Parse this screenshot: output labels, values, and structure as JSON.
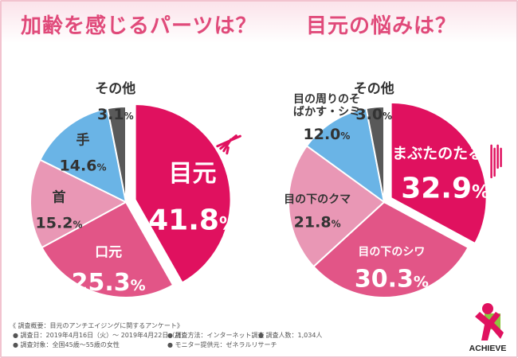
{
  "titles": {
    "left": "加齢を感じるパーツは？",
    "right": "目元の悩みは？"
  },
  "chart_data": [
    {
      "type": "pie",
      "title": "加齢を感じるパーツは？",
      "unit": "%",
      "slices": [
        {
          "label": "目元",
          "value": 41.8,
          "color": "#e0115f",
          "highlight": true
        },
        {
          "label": "口元",
          "value": 25.3,
          "color": "#e25587"
        },
        {
          "label": "首",
          "value": 15.2,
          "color": "#e997b5"
        },
        {
          "label": "手",
          "value": 14.6,
          "color": "#6ab4e6"
        },
        {
          "label": "その他",
          "value": 3.1,
          "color": "#595959"
        }
      ]
    },
    {
      "type": "pie",
      "title": "目元の悩みは？",
      "unit": "%",
      "slices": [
        {
          "label": "まぶたのたるみ",
          "value": 32.9,
          "color": "#e0115f",
          "highlight": true
        },
        {
          "label": "目の下のシワ",
          "value": 30.3,
          "color": "#e25587"
        },
        {
          "label": "目の下のクマ",
          "value": 21.8,
          "color": "#e997b5"
        },
        {
          "label": "目の周りのそばかす・シミ",
          "value": 12.0,
          "color": "#6ab4e6"
        },
        {
          "label": "その他",
          "value": 3.0,
          "color": "#595959"
        }
      ]
    }
  ],
  "footnotes": {
    "heading": "《 調査概要：目元のアンチエイジングに関するアンケート》",
    "date": "● 調査日：2019年4月16日（火）～ 2019年4月22日（月）",
    "method": "● 調査方法：インターネット調査",
    "count": "● 調査人数：1,034人",
    "target": "● 調査対象：全国45歳～55歳の女性",
    "provider": "● モニター提供元：ゼネラルリサーチ"
  },
  "logo": {
    "text": "ACHIEVE",
    "colors": [
      "#e0115f",
      "#8cc63f"
    ]
  }
}
